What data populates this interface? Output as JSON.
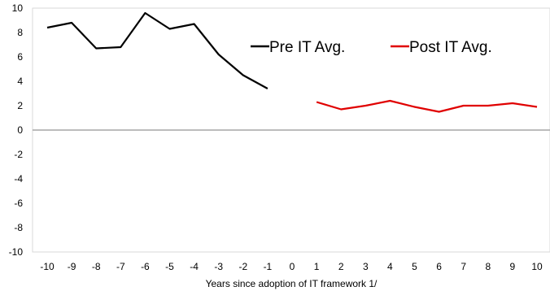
{
  "chart_data": {
    "type": "line",
    "title": "",
    "xlabel": "Years since adoption of IT framework 1/",
    "ylabel": "",
    "x_ticks": [
      "-10",
      "-9",
      "-8",
      "-7",
      "-6",
      "-5",
      "-4",
      "-3",
      "-2",
      "-1",
      "0",
      "1",
      "2",
      "3",
      "4",
      "5",
      "6",
      "7",
      "8",
      "9",
      "10"
    ],
    "y_ticks": [
      "10",
      "8",
      "6",
      "4",
      "2",
      "0",
      "-2",
      "-4",
      "-6",
      "-8",
      "-10"
    ],
    "xlim": [
      -10,
      10
    ],
    "ylim": [
      -10,
      10
    ],
    "grid": false,
    "legend_position": "top-right",
    "series": [
      {
        "name": "Pre IT Avg.",
        "color": "#000000",
        "x": [
          -10,
          -9,
          -8,
          -7,
          -6,
          -5,
          -4,
          -3,
          -2,
          -1
        ],
        "values": [
          8.4,
          8.8,
          6.7,
          6.8,
          9.6,
          8.3,
          8.7,
          6.2,
          4.5,
          3.4
        ]
      },
      {
        "name": "Post IT Avg.",
        "color": "#e00000",
        "x": [
          1,
          2,
          3,
          4,
          5,
          6,
          7,
          8,
          9,
          10
        ],
        "values": [
          2.3,
          1.7,
          2.0,
          2.4,
          1.9,
          1.5,
          2.0,
          2.0,
          2.2,
          1.9
        ]
      }
    ]
  }
}
